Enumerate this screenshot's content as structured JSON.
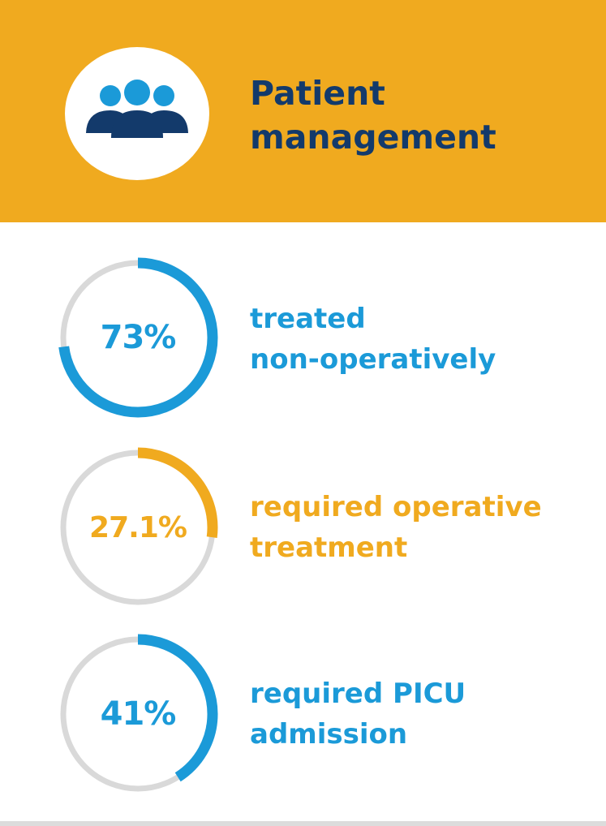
{
  "header": {
    "icon": "people-group-icon",
    "title_line1": "Patient",
    "title_line2": "management"
  },
  "stats": [
    {
      "value_label": "73%",
      "fraction": 0.73,
      "label_line1": "treated",
      "label_line2": "non-operatively",
      "color": "#1b9ad8"
    },
    {
      "value_label": "27.1%",
      "fraction": 0.271,
      "label_line1": "required operative",
      "label_line2": "treatment",
      "color": "#f0aa1f"
    },
    {
      "value_label": "41%",
      "fraction": 0.41,
      "label_line1": "required PICU",
      "label_line2": "admission",
      "color": "#1b9ad8"
    }
  ],
  "colors": {
    "header_background": "#f0aa1f",
    "title": "#133a6b",
    "track": "#d9d9d9",
    "icon_light": "#1b9ad8",
    "icon_dark": "#133a6b"
  }
}
